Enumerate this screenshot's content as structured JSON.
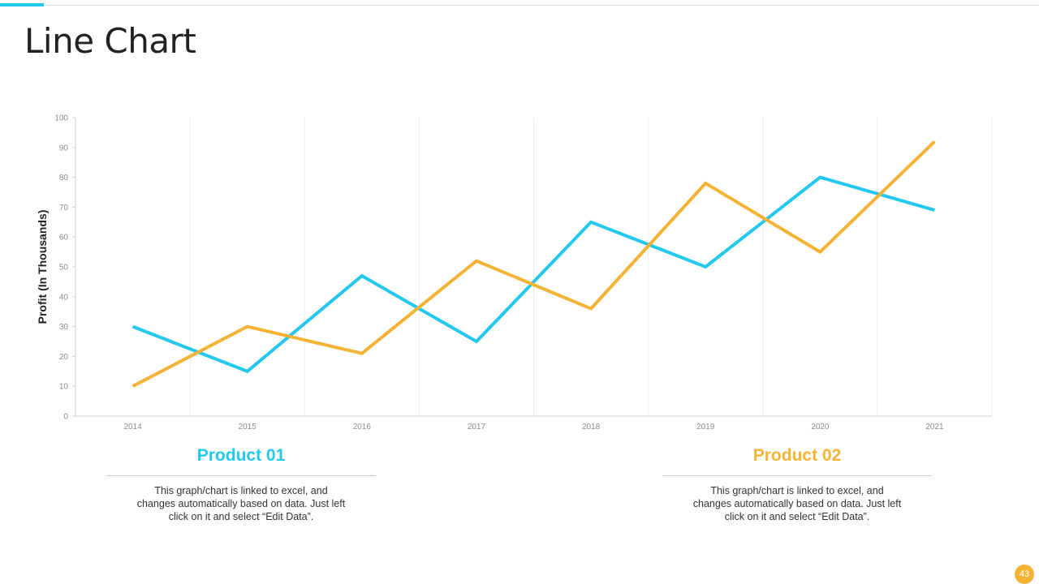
{
  "slide": {
    "title": "Line Chart",
    "page_number": "43"
  },
  "colors": {
    "accent": "#22c8ee",
    "product1": "#22c8ee",
    "product2": "#f5b335",
    "badge": "#f5b335"
  },
  "chart_data": {
    "type": "line",
    "title": "",
    "xlabel": "",
    "ylabel": "Profit (In Thousands)",
    "categories": [
      "2014",
      "2015",
      "2016",
      "2017",
      "2018",
      "2019",
      "2020",
      "2021"
    ],
    "ylim": [
      0,
      100
    ],
    "yticks": [
      0,
      10,
      20,
      30,
      40,
      50,
      60,
      70,
      80,
      90,
      100
    ],
    "grid": "vertical",
    "series": [
      {
        "name": "Product 01",
        "color": "#22c8ee",
        "values": [
          30,
          15,
          47,
          25,
          65,
          50,
          80,
          69
        ]
      },
      {
        "name": "Product 02",
        "color": "#f5b335",
        "values": [
          10,
          30,
          21,
          52,
          36,
          78,
          55,
          92
        ]
      }
    ]
  },
  "products": [
    {
      "title": "Product 01",
      "description": "This graph/chart is linked to excel, and changes automatically based on data. Just left click on it and select “Edit Data”."
    },
    {
      "title": "Product 02",
      "description": "This graph/chart is linked to excel, and changes automatically based on data. Just left click on it and select “Edit Data”."
    }
  ]
}
